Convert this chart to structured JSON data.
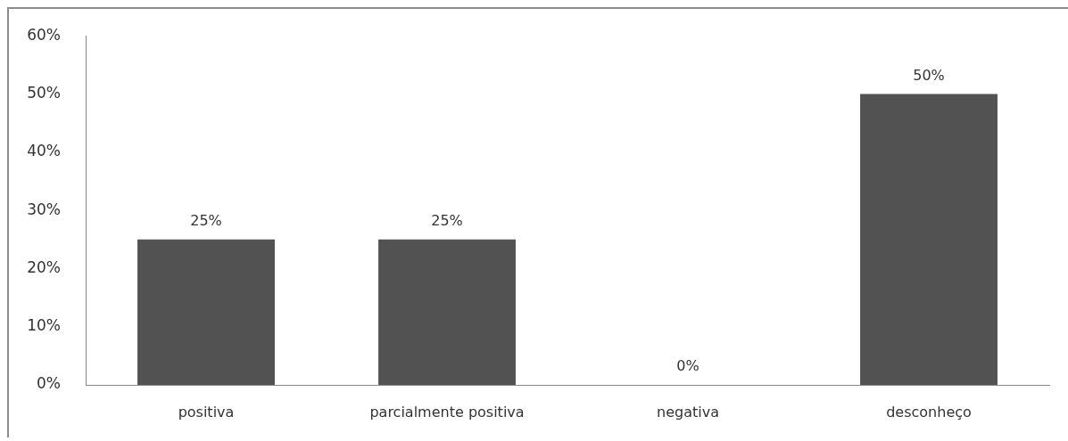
{
  "chart_data": {
    "type": "bar",
    "categories": [
      "positiva",
      "parcialmente positiva",
      "negativa",
      "desconheço"
    ],
    "values": [
      25,
      25,
      0,
      50
    ],
    "color": "#525252",
    "value_labels": [
      "25%",
      "25%",
      "0%",
      "50%"
    ],
    "ylim": [
      0,
      60
    ],
    "yticks": [
      {
        "value": 0,
        "label": "0%"
      },
      {
        "value": 10,
        "label": "10%"
      },
      {
        "value": 20,
        "label": "20%"
      },
      {
        "value": 30,
        "label": "30%"
      },
      {
        "value": 40,
        "label": "40%"
      },
      {
        "value": 50,
        "label": "50%"
      },
      {
        "value": 60,
        "label": "60%"
      }
    ]
  }
}
